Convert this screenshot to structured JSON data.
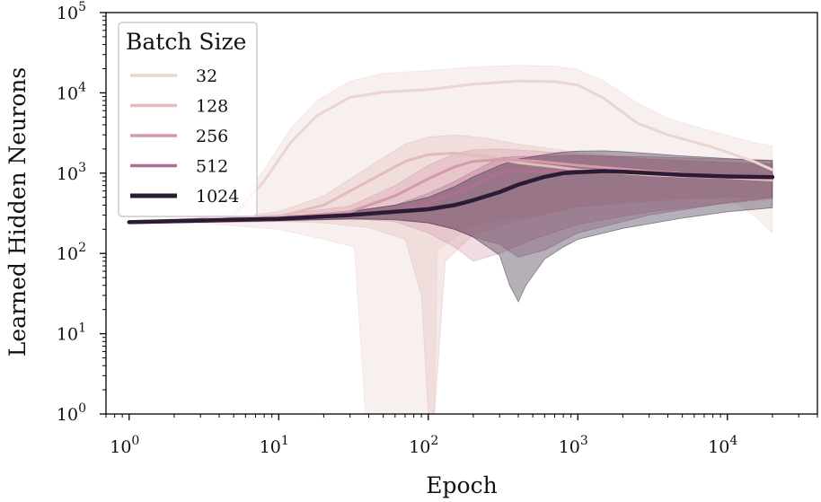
{
  "chart_data": {
    "type": "line",
    "xlabel": "Epoch",
    "ylabel": "Learned Hidden Neurons",
    "xscale": "log",
    "yscale": "log",
    "xlim": [
      0.7,
      40000
    ],
    "ylim": [
      1,
      100000
    ],
    "grid": false,
    "x_ticks": [
      {
        "value": 1,
        "base": "10",
        "exp": "0"
      },
      {
        "value": 10,
        "base": "10",
        "exp": "1"
      },
      {
        "value": 100,
        "base": "10",
        "exp": "2"
      },
      {
        "value": 1000,
        "base": "10",
        "exp": "3"
      },
      {
        "value": 10000,
        "base": "10",
        "exp": "4"
      }
    ],
    "y_ticks": [
      {
        "value": 1,
        "base": "10",
        "exp": "0"
      },
      {
        "value": 10,
        "base": "10",
        "exp": "1"
      },
      {
        "value": 100,
        "base": "10",
        "exp": "2"
      },
      {
        "value": 1000,
        "base": "10",
        "exp": "3"
      },
      {
        "value": 10000,
        "base": "10",
        "exp": "4"
      },
      {
        "value": 100000,
        "base": "10",
        "exp": "5"
      }
    ],
    "legend": {
      "title": "Batch Size",
      "position": "top-left"
    },
    "series": [
      {
        "name": "32",
        "color": "#ecd5d0",
        "line_width": 3,
        "points": [
          [
            1,
            245
          ],
          [
            3,
            258
          ],
          [
            5,
            300
          ],
          [
            8,
            800
          ],
          [
            12,
            2400
          ],
          [
            18,
            5200
          ],
          [
            30,
            8800
          ],
          [
            50,
            10200
          ],
          [
            100,
            11000
          ],
          [
            200,
            12800
          ],
          [
            400,
            14000
          ],
          [
            700,
            13800
          ],
          [
            1000,
            12500
          ],
          [
            1500,
            8500
          ],
          [
            2500,
            4200
          ],
          [
            4000,
            3000
          ],
          [
            8000,
            2100
          ],
          [
            15000,
            1400
          ],
          [
            20000,
            1100
          ]
        ],
        "band_upper": [
          [
            1,
            255
          ],
          [
            3,
            275
          ],
          [
            5,
            340
          ],
          [
            8,
            1100
          ],
          [
            12,
            3600
          ],
          [
            18,
            8000
          ],
          [
            30,
            14000
          ],
          [
            50,
            17500
          ],
          [
            100,
            19000
          ],
          [
            200,
            21000
          ],
          [
            400,
            22000
          ],
          [
            700,
            21500
          ],
          [
            1000,
            19500
          ],
          [
            1500,
            14000
          ],
          [
            2500,
            7500
          ],
          [
            4000,
            4800
          ],
          [
            8000,
            3300
          ],
          [
            15000,
            2400
          ],
          [
            20000,
            2200
          ]
        ],
        "band_lower": [
          [
            1,
            235
          ],
          [
            3,
            240
          ],
          [
            5,
            220
          ],
          [
            10,
            200
          ],
          [
            20,
            150
          ],
          [
            32,
            120
          ],
          [
            38,
            1
          ],
          [
            110,
            1
          ],
          [
            115,
            110
          ],
          [
            200,
            230
          ],
          [
            400,
            280
          ],
          [
            700,
            330
          ],
          [
            1000,
            380
          ],
          [
            2000,
            450
          ],
          [
            5000,
            500
          ],
          [
            10000,
            500
          ],
          [
            15000,
            300
          ],
          [
            20000,
            180
          ]
        ]
      },
      {
        "name": "128",
        "color": "#e2bcbb",
        "line_width": 3,
        "points": [
          [
            1,
            245
          ],
          [
            5,
            265
          ],
          [
            10,
            290
          ],
          [
            20,
            400
          ],
          [
            40,
            800
          ],
          [
            70,
            1400
          ],
          [
            100,
            1700
          ],
          [
            150,
            1780
          ],
          [
            250,
            1600
          ],
          [
            400,
            1350
          ],
          [
            700,
            1200
          ],
          [
            1000,
            1100
          ],
          [
            3000,
            950
          ],
          [
            10000,
            880
          ],
          [
            20000,
            820
          ]
        ],
        "band_upper": [
          [
            1,
            255
          ],
          [
            5,
            285
          ],
          [
            10,
            330
          ],
          [
            20,
            520
          ],
          [
            40,
            1200
          ],
          [
            70,
            2300
          ],
          [
            100,
            2800
          ],
          [
            150,
            3000
          ],
          [
            250,
            2700
          ],
          [
            400,
            2300
          ],
          [
            700,
            2000
          ],
          [
            1000,
            1800
          ],
          [
            3000,
            1500
          ],
          [
            10000,
            1350
          ],
          [
            20000,
            1300
          ]
        ],
        "band_lower": [
          [
            1,
            235
          ],
          [
            5,
            245
          ],
          [
            10,
            250
          ],
          [
            20,
            240
          ],
          [
            40,
            210
          ],
          [
            70,
            150
          ],
          [
            90,
            30
          ],
          [
            100,
            1
          ],
          [
            110,
            1
          ],
          [
            130,
            80
          ],
          [
            200,
            170
          ],
          [
            400,
            260
          ],
          [
            1000,
            380
          ],
          [
            3000,
            450
          ],
          [
            10000,
            500
          ],
          [
            20000,
            500
          ]
        ]
      },
      {
        "name": "256",
        "color": "#d49aa9",
        "line_width": 3,
        "points": [
          [
            1,
            245
          ],
          [
            10,
            275
          ],
          [
            30,
            330
          ],
          [
            60,
            520
          ],
          [
            100,
            850
          ],
          [
            150,
            1200
          ],
          [
            200,
            1400
          ],
          [
            300,
            1480
          ],
          [
            500,
            1420
          ],
          [
            1000,
            1250
          ],
          [
            3000,
            1050
          ],
          [
            10000,
            900
          ],
          [
            20000,
            870
          ]
        ],
        "band_upper": [
          [
            1,
            255
          ],
          [
            10,
            300
          ],
          [
            30,
            390
          ],
          [
            60,
            700
          ],
          [
            100,
            1250
          ],
          [
            150,
            1750
          ],
          [
            200,
            1950
          ],
          [
            300,
            2000
          ],
          [
            500,
            1900
          ],
          [
            1000,
            1700
          ],
          [
            3000,
            1500
          ],
          [
            10000,
            1350
          ],
          [
            20000,
            1300
          ]
        ],
        "band_lower": [
          [
            1,
            235
          ],
          [
            10,
            250
          ],
          [
            30,
            270
          ],
          [
            60,
            250
          ],
          [
            100,
            180
          ],
          [
            150,
            120
          ],
          [
            200,
            80
          ],
          [
            300,
            100
          ],
          [
            500,
            150
          ],
          [
            1000,
            230
          ],
          [
            3000,
            330
          ],
          [
            10000,
            420
          ],
          [
            20000,
            480
          ]
        ]
      },
      {
        "name": "512",
        "color": "#b06e91",
        "line_width": 3,
        "points": [
          [
            1,
            245
          ],
          [
            20,
            285
          ],
          [
            60,
            340
          ],
          [
            100,
            420
          ],
          [
            150,
            560
          ],
          [
            200,
            700
          ],
          [
            250,
            860
          ],
          [
            300,
            1010
          ],
          [
            400,
            1050
          ],
          [
            1000,
            1060
          ],
          [
            3000,
            1000
          ],
          [
            10000,
            940
          ],
          [
            20000,
            930
          ]
        ],
        "band_upper": [
          [
            1,
            255
          ],
          [
            20,
            305
          ],
          [
            60,
            400
          ],
          [
            100,
            560
          ],
          [
            150,
            790
          ],
          [
            200,
            1050
          ],
          [
            250,
            1300
          ],
          [
            300,
            1550
          ],
          [
            400,
            1620
          ],
          [
            1000,
            1650
          ],
          [
            3000,
            1600
          ],
          [
            10000,
            1500
          ],
          [
            20000,
            1450
          ]
        ],
        "band_lower": [
          [
            1,
            235
          ],
          [
            20,
            262
          ],
          [
            60,
            270
          ],
          [
            100,
            240
          ],
          [
            150,
            200
          ],
          [
            200,
            160
          ],
          [
            300,
            130
          ],
          [
            400,
            90
          ],
          [
            600,
            110
          ],
          [
            1000,
            180
          ],
          [
            3000,
            300
          ],
          [
            10000,
            430
          ],
          [
            20000,
            500
          ]
        ]
      },
      {
        "name": "1024",
        "color": "#2a1c35",
        "line_width": 4.5,
        "points": [
          [
            1,
            245
          ],
          [
            10,
            270
          ],
          [
            30,
            300
          ],
          [
            60,
            330
          ],
          [
            100,
            355
          ],
          [
            150,
            400
          ],
          [
            200,
            460
          ],
          [
            300,
            580
          ],
          [
            400,
            720
          ],
          [
            600,
            900
          ],
          [
            800,
            1000
          ],
          [
            1000,
            1030
          ],
          [
            1500,
            1060
          ],
          [
            2000,
            1040
          ],
          [
            3000,
            1000
          ],
          [
            5000,
            950
          ],
          [
            10000,
            910
          ],
          [
            20000,
            890
          ]
        ],
        "band_upper": [
          [
            1,
            255
          ],
          [
            10,
            285
          ],
          [
            30,
            330
          ],
          [
            60,
            400
          ],
          [
            100,
            500
          ],
          [
            150,
            680
          ],
          [
            200,
            900
          ],
          [
            300,
            1250
          ],
          [
            400,
            1500
          ],
          [
            600,
            1700
          ],
          [
            800,
            1830
          ],
          [
            1000,
            1880
          ],
          [
            1500,
            1900
          ],
          [
            2000,
            1850
          ],
          [
            3000,
            1760
          ],
          [
            5000,
            1640
          ],
          [
            10000,
            1520
          ],
          [
            20000,
            1430
          ]
        ],
        "band_lower": [
          [
            1,
            235
          ],
          [
            10,
            255
          ],
          [
            30,
            270
          ],
          [
            60,
            262
          ],
          [
            100,
            240
          ],
          [
            150,
            200
          ],
          [
            200,
            160
          ],
          [
            300,
            95
          ],
          [
            350,
            40
          ],
          [
            400,
            25
          ],
          [
            450,
            40
          ],
          [
            600,
            85
          ],
          [
            800,
            120
          ],
          [
            1000,
            150
          ],
          [
            2000,
            205
          ],
          [
            5000,
            275
          ],
          [
            10000,
            330
          ],
          [
            20000,
            370
          ]
        ]
      }
    ]
  }
}
